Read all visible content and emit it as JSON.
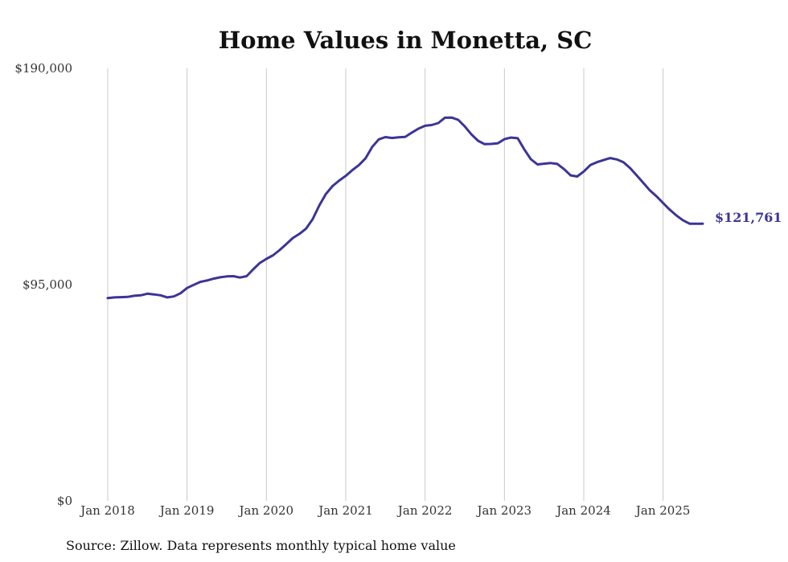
{
  "chart_data": {
    "type": "line",
    "title": "Home Values in Monetta, SC",
    "xlabel": "",
    "ylabel": "",
    "ylim": [
      0,
      190000
    ],
    "y_ticks": [
      {
        "value": 0,
        "label": "$0"
      },
      {
        "value": 95000,
        "label": "$95,000"
      },
      {
        "value": 190000,
        "label": "$190,000"
      }
    ],
    "x_ticks": [
      {
        "x": "2018-01",
        "label": "Jan 2018"
      },
      {
        "x": "2019-01",
        "label": "Jan 2019"
      },
      {
        "x": "2020-01",
        "label": "Jan 2020"
      },
      {
        "x": "2021-01",
        "label": "Jan 2021"
      },
      {
        "x": "2022-01",
        "label": "Jan 2022"
      },
      {
        "x": "2023-01",
        "label": "Jan 2023"
      },
      {
        "x": "2024-01",
        "label": "Jan 2024"
      },
      {
        "x": "2025-01",
        "label": "Jan 2025"
      }
    ],
    "xlim": [
      "2018-01",
      "2025-07"
    ],
    "grid": "vertical",
    "legend": "none",
    "color": "#3b3596",
    "end_label": "$121,761",
    "series": [
      {
        "x": [
          "2018-01",
          "2018-02",
          "2018-03",
          "2018-04",
          "2018-05",
          "2018-06",
          "2018-07",
          "2018-08",
          "2018-09",
          "2018-10",
          "2018-11",
          "2018-12",
          "2019-01",
          "2019-02",
          "2019-03",
          "2019-04",
          "2019-05",
          "2019-06",
          "2019-07",
          "2019-08",
          "2019-09",
          "2019-10",
          "2019-11",
          "2019-12",
          "2020-01",
          "2020-02",
          "2020-03",
          "2020-04",
          "2020-05",
          "2020-06",
          "2020-07",
          "2020-08",
          "2020-09",
          "2020-10",
          "2020-11",
          "2020-12",
          "2021-01",
          "2021-02",
          "2021-03",
          "2021-04",
          "2021-05",
          "2021-06",
          "2021-07",
          "2021-08",
          "2021-09",
          "2021-10",
          "2021-11",
          "2021-12",
          "2022-01",
          "2022-02",
          "2022-03",
          "2022-04",
          "2022-05",
          "2022-06",
          "2022-07",
          "2022-08",
          "2022-09",
          "2022-10",
          "2022-11",
          "2022-12",
          "2023-01",
          "2023-02",
          "2023-03",
          "2023-04",
          "2023-05",
          "2023-06",
          "2023-07",
          "2023-08",
          "2023-09",
          "2023-10",
          "2023-11",
          "2023-12",
          "2024-01",
          "2024-02",
          "2024-03",
          "2024-04",
          "2024-05",
          "2024-06",
          "2024-07",
          "2024-08",
          "2024-09",
          "2024-10",
          "2024-11",
          "2024-12",
          "2025-01",
          "2025-02",
          "2025-03",
          "2025-04",
          "2025-05",
          "2025-06",
          "2025-07"
        ],
        "values": [
          89100,
          89400,
          89500,
          89600,
          90100,
          90300,
          91000,
          90700,
          90300,
          89400,
          89800,
          91200,
          93500,
          94900,
          96200,
          96800,
          97600,
          98200,
          98600,
          98700,
          98100,
          98700,
          101700,
          104500,
          106300,
          107900,
          110200,
          112800,
          115500,
          117300,
          119600,
          123800,
          129800,
          134800,
          138300,
          140700,
          142800,
          145300,
          147500,
          150500,
          155500,
          158800,
          159800,
          159400,
          159700,
          159900,
          161800,
          163500,
          164800,
          165100,
          166000,
          168300,
          168400,
          167400,
          164500,
          161000,
          158200,
          156700,
          156800,
          157100,
          158900,
          159600,
          159300,
          154400,
          150100,
          147800,
          148100,
          148400,
          148000,
          145800,
          143000,
          142500,
          144700,
          147500,
          148800,
          149700,
          150600,
          150000,
          148800,
          146200,
          143000,
          139700,
          136400,
          133800,
          130800,
          127900,
          125400,
          123300,
          121761,
          121761,
          121761
        ]
      }
    ]
  },
  "footer": {
    "source": "Source: Zillow. Data represents monthly typical home value"
  }
}
